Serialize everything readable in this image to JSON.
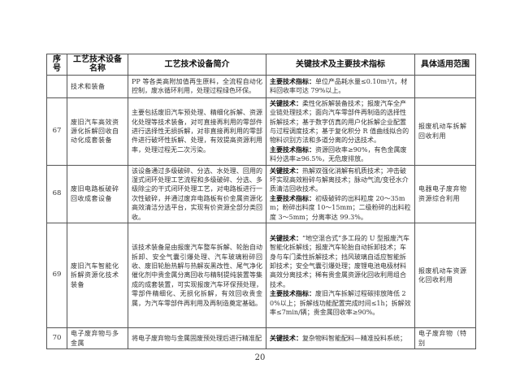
{
  "table": {
    "headers": [
      "序号",
      "工艺技术设备名称",
      "工艺技术设备简介",
      "关键技术及主要技术指标",
      "具体适用范围"
    ],
    "rows": [
      {
        "num": "",
        "name": "技术和装备",
        "intro": "PP 等各类高附加值再生原料，全流程自动化控制，废水循环利用，处理过程绿色环保。",
        "key_label": "",
        "key": "",
        "idx_label": "主要技术指标：",
        "idx": "单位产品耗水量≤0.10m³/t，材料回收率可达 79%以上。",
        "scope": ""
      },
      {
        "num": "67",
        "name": "废旧汽车高效资源化拆解回收自动化成套装备",
        "intro": "主要包括废旧汽车预处理、精细化拆解、资源化处理等技术装备，对可直接再利用的零部件进行选择性无损拆解，对非直接再利用的零部件进行破坏性拆解、处理，有效提高资源利用率，处理过程无二次污染。",
        "key_label": "关键技术：",
        "key": "柔性化拆解装备技术；报废汽车全产业链处理技术；面向汽车零部件再制造的选择性拆解技术；基于数字仿真的用户化拆解企业配置与过程调度技术；基于复化积分 R 值曲线拟合的物料识别方法和多道分离的分选技术。",
        "idx_label": "主要技术指标：",
        "idx": "资源回收率≥90%，有色金属废料分选率≥96.5%，无危废排放。",
        "scope": "报废机动车拆解回收利用"
      },
      {
        "num": "68",
        "name": "废旧电路板破碎回收成套设备",
        "intro": "该设备通过多级破碎、分选、水处理、回用的湿式闭环处理工艺流程和多级破碎、分选、多级除尘的干式闭环处理工艺，对电路板进行一次性破碎，并通过废弃电路板有价金属资源化高效清洁分选平台，实现有价资源全部分类回收。",
        "key_label": "关键技术：",
        "key": "热解双强化消解有机质技术；冲击破坏实现高效粉碎与解离技术；脉动气流/变径水介质清洁回收技术。",
        "idx_label": "主要技术指标：",
        "idx": "初级破碎的出料粒度 20～35mm；粉碎出料度 10～15mm；二级粉碎的出料粒度 3～5mm；分离率达 99.3%。",
        "scope": "电器电子废弃物资源综合利用"
      },
      {
        "num": "69",
        "name": "废旧汽车智能化拆解资源化技术装备",
        "intro": "该技术装备是由报废汽车整车拆解、轮胎自动拆卸、安全气囊引爆处理、汽车玻璃粉碎回收、废旧轮胎热解与热解炭黑改性、尾气净化催化剂中贵金属分离回收与精制提纯装置等集成的成套装置，可实现报废汽车环保预处理，零部件精细化、无损化拆解，有效回收贵金属，为汽车零部件再利用及再制造奠定基础。",
        "key_label": "关键技术：",
        "key": "“地空混合式”多工段的 U 型报废汽车智能化拆解线；报废汽车轮胎自动拆卸技术；车身与车门柔性拆解技术；挡风玻璃自适应智能拆卸技术；安全气囊引爆处理；废锂电池电极材料高效分离技术；稀有贵金属资源化回收利用组合技术。",
        "idx_label": "主要技术指标：",
        "idx": "废旧汽车拆解过程碳排放降低 20%以上；拆解线功能配置完成时间≤1h；拆解效率≤7min/辆；贵金属回收率≥90%。",
        "scope": "报废机动车资源化回收利用"
      },
      {
        "num": "70",
        "name": "电子废弃物与多金属",
        "intro": "将电子废弃物与金属固废预处理后进行精准配",
        "key_label": "关键技术：",
        "key": "复杂物料智能配料—精准投料系统；",
        "idx_label": "",
        "idx": "",
        "scope": "电子废弃物（特别"
      }
    ]
  },
  "page_number": "20"
}
